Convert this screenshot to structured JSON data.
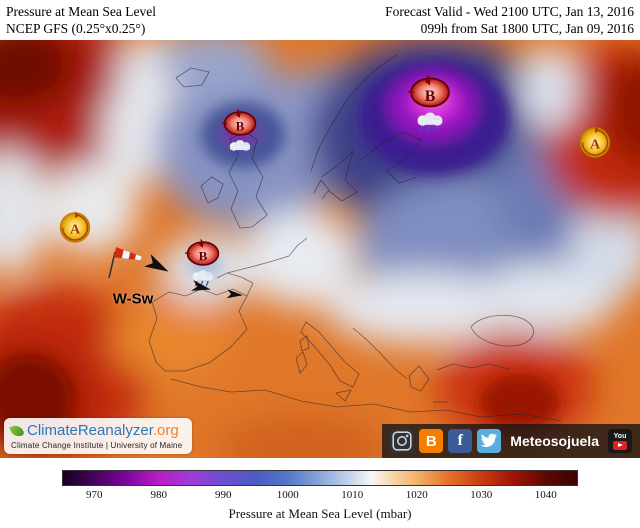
{
  "header": {
    "title": "Pressure at Mean Sea Level",
    "model": "NCEP GFS (0.25°x0.25°)",
    "forecast_valid": "Forecast Valid - Wed 2100 UTC, Jan 13, 2016",
    "forecast_init": "099h from Sat 1800 UTC, Jan 09, 2016"
  },
  "map": {
    "systems": [
      {
        "kind": "low",
        "label": "B"
      },
      {
        "kind": "low",
        "label": "B"
      },
      {
        "kind": "low",
        "label": "B"
      },
      {
        "kind": "high",
        "label": "A"
      },
      {
        "kind": "high",
        "label": "A"
      }
    ],
    "wind_label": "W-Sw"
  },
  "branding": {
    "site": "ClimateReanalyzer",
    "tld": ".org",
    "institution": "Climate Change Institute | University of Maine"
  },
  "social": {
    "handle": "Meteosojuela",
    "blogger_letter": "B",
    "facebook_letter": "f",
    "youtube_you": "You"
  },
  "colorbar": {
    "min": 965,
    "max": 1045,
    "ticks": [
      970,
      980,
      990,
      1000,
      1010,
      1020,
      1030,
      1040
    ],
    "caption": "Pressure at Mean Sea Level (mbar)",
    "stops": [
      {
        "value": 965,
        "color": "#16011f"
      },
      {
        "value": 970,
        "color": "#45035e"
      },
      {
        "value": 975,
        "color": "#7d06a0"
      },
      {
        "value": 980,
        "color": "#b81ec4"
      },
      {
        "value": 985,
        "color": "#a03ad8"
      },
      {
        "value": 990,
        "color": "#6a50d0"
      },
      {
        "value": 995,
        "color": "#4b5cc4"
      },
      {
        "value": 1000,
        "color": "#5577c8"
      },
      {
        "value": 1005,
        "color": "#8aa6da"
      },
      {
        "value": 1010,
        "color": "#c9d8ec"
      },
      {
        "value": 1013,
        "color": "#f7f7f5"
      },
      {
        "value": 1016,
        "color": "#f6d8ae"
      },
      {
        "value": 1020,
        "color": "#f3b36a"
      },
      {
        "value": 1025,
        "color": "#e4712a"
      },
      {
        "value": 1030,
        "color": "#cc3c12"
      },
      {
        "value": 1035,
        "color": "#a01408"
      },
      {
        "value": 1040,
        "color": "#600802"
      },
      {
        "value": 1045,
        "color": "#3a0400"
      }
    ]
  }
}
